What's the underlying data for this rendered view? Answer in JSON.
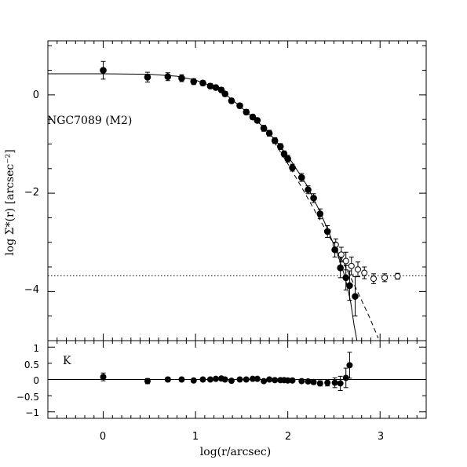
{
  "chart_data": {
    "type": "scatter",
    "annotation": "NGC7089 (M2)",
    "ylabel": "log Σ*(r) [arcsec⁻²]",
    "xlabel": "log(r/arcsec)",
    "residual_label": "K",
    "xlim": [
      -0.6,
      3.5
    ],
    "ylim": [
      -5.0,
      1.1
    ],
    "residual_ylim": [
      -1.2,
      1.2
    ],
    "background_level": -3.68,
    "x_ticks": [
      "0",
      "1",
      "2",
      "3"
    ],
    "y_ticks": [
      "0",
      "−2",
      "−4"
    ],
    "residual_ticks": [
      "1",
      "0.5",
      "0",
      "−0.5",
      "−1"
    ],
    "grid": false,
    "series": [
      {
        "marker": "filled-circle",
        "points": [
          {
            "x": 0.0,
            "y": 0.5,
            "e": 0.18
          },
          {
            "x": 0.48,
            "y": 0.36,
            "e": 0.1
          },
          {
            "x": 0.7,
            "y": 0.37,
            "e": 0.08
          },
          {
            "x": 0.85,
            "y": 0.34,
            "e": 0.07
          },
          {
            "x": 0.98,
            "y": 0.27,
            "e": 0.06
          },
          {
            "x": 1.08,
            "y": 0.24,
            "e": 0.05
          },
          {
            "x": 1.16,
            "y": 0.18,
            "e": 0.05
          },
          {
            "x": 1.22,
            "y": 0.15,
            "e": 0.05
          },
          {
            "x": 1.28,
            "y": 0.1,
            "e": 0.05
          },
          {
            "x": 1.32,
            "y": 0.02,
            "e": 0.05
          },
          {
            "x": 1.39,
            "y": -0.12,
            "e": 0.05
          },
          {
            "x": 1.48,
            "y": -0.22,
            "e": 0.05
          },
          {
            "x": 1.55,
            "y": -0.35,
            "e": 0.05
          },
          {
            "x": 1.62,
            "y": -0.45,
            "e": 0.05
          },
          {
            "x": 1.67,
            "y": -0.52,
            "e": 0.05
          },
          {
            "x": 1.74,
            "y": -0.68,
            "e": 0.06
          },
          {
            "x": 1.8,
            "y": -0.78,
            "e": 0.06
          },
          {
            "x": 1.86,
            "y": -0.93,
            "e": 0.06
          },
          {
            "x": 1.92,
            "y": -1.05,
            "e": 0.06
          },
          {
            "x": 1.96,
            "y": -1.2,
            "e": 0.06
          },
          {
            "x": 2.0,
            "y": -1.3,
            "e": 0.07
          },
          {
            "x": 2.05,
            "y": -1.48,
            "e": 0.07
          },
          {
            "x": 2.15,
            "y": -1.68,
            "e": 0.08
          },
          {
            "x": 2.22,
            "y": -1.93,
            "e": 0.08
          },
          {
            "x": 2.28,
            "y": -2.1,
            "e": 0.09
          },
          {
            "x": 2.35,
            "y": -2.42,
            "e": 0.1
          },
          {
            "x": 2.43,
            "y": -2.78,
            "e": 0.12
          },
          {
            "x": 2.51,
            "y": -3.15,
            "e": 0.15
          },
          {
            "x": 2.57,
            "y": -3.52,
            "e": 0.2
          },
          {
            "x": 2.63,
            "y": -3.72,
            "e": 0.25
          },
          {
            "x": 2.67,
            "y": -3.88,
            "e": 0.3
          },
          {
            "x": 2.73,
            "y": -4.1,
            "e": 0.4
          }
        ]
      },
      {
        "marker": "open-circle",
        "points": [
          {
            "x": 2.52,
            "y": -3.05,
            "e": 0.12
          },
          {
            "x": 2.58,
            "y": -3.25,
            "e": 0.15
          },
          {
            "x": 2.63,
            "y": -3.38,
            "e": 0.18
          },
          {
            "x": 2.69,
            "y": -3.48,
            "e": 0.18
          },
          {
            "x": 2.76,
            "y": -3.55,
            "e": 0.15
          },
          {
            "x": 2.83,
            "y": -3.62,
            "e": 0.12
          },
          {
            "x": 2.93,
            "y": -3.74,
            "e": 0.1
          },
          {
            "x": 3.05,
            "y": -3.72,
            "e": 0.08
          },
          {
            "x": 3.19,
            "y": -3.69,
            "e": 0.06
          }
        ]
      }
    ],
    "model_solid": [
      {
        "x": -0.6,
        "y": 0.43
      },
      {
        "x": 0.0,
        "y": 0.43
      },
      {
        "x": 0.5,
        "y": 0.42
      },
      {
        "x": 0.8,
        "y": 0.38
      },
      {
        "x": 1.0,
        "y": 0.3
      },
      {
        "x": 1.15,
        "y": 0.2
      },
      {
        "x": 1.3,
        "y": 0.05
      },
      {
        "x": 1.45,
        "y": -0.18
      },
      {
        "x": 1.6,
        "y": -0.42
      },
      {
        "x": 1.75,
        "y": -0.68
      },
      {
        "x": 1.9,
        "y": -1.0
      },
      {
        "x": 2.05,
        "y": -1.38
      },
      {
        "x": 2.2,
        "y": -1.82
      },
      {
        "x": 2.35,
        "y": -2.38
      },
      {
        "x": 2.45,
        "y": -2.82
      },
      {
        "x": 2.55,
        "y": -3.3
      },
      {
        "x": 2.62,
        "y": -3.7
      },
      {
        "x": 2.68,
        "y": -4.2
      },
      {
        "x": 2.72,
        "y": -4.7
      },
      {
        "x": 2.75,
        "y": -5.0
      }
    ],
    "model_dashed": [
      {
        "x": 1.85,
        "y": -0.95
      },
      {
        "x": 2.0,
        "y": -1.4
      },
      {
        "x": 2.15,
        "y": -1.88
      },
      {
        "x": 2.3,
        "y": -2.38
      },
      {
        "x": 2.45,
        "y": -2.88
      },
      {
        "x": 2.6,
        "y": -3.4
      },
      {
        "x": 2.75,
        "y": -3.98
      },
      {
        "x": 2.88,
        "y": -4.5
      },
      {
        "x": 2.98,
        "y": -4.95
      }
    ],
    "residuals": [
      {
        "x": 0.0,
        "y": 0.08,
        "e": 0.12
      },
      {
        "x": 0.48,
        "y": -0.05,
        "e": 0.08
      },
      {
        "x": 0.7,
        "y": 0.0,
        "e": 0.07
      },
      {
        "x": 0.85,
        "y": 0.0,
        "e": 0.06
      },
      {
        "x": 0.98,
        "y": -0.03,
        "e": 0.05
      },
      {
        "x": 1.08,
        "y": 0.0,
        "e": 0.04
      },
      {
        "x": 1.16,
        "y": 0.0,
        "e": 0.04
      },
      {
        "x": 1.22,
        "y": 0.02,
        "e": 0.04
      },
      {
        "x": 1.28,
        "y": 0.03,
        "e": 0.04
      },
      {
        "x": 1.32,
        "y": 0.0,
        "e": 0.04
      },
      {
        "x": 1.39,
        "y": -0.04,
        "e": 0.04
      },
      {
        "x": 1.48,
        "y": 0.0,
        "e": 0.04
      },
      {
        "x": 1.55,
        "y": 0.0,
        "e": 0.04
      },
      {
        "x": 1.62,
        "y": 0.02,
        "e": 0.04
      },
      {
        "x": 1.67,
        "y": 0.02,
        "e": 0.04
      },
      {
        "x": 1.74,
        "y": -0.05,
        "e": 0.05
      },
      {
        "x": 1.8,
        "y": 0.0,
        "e": 0.05
      },
      {
        "x": 1.86,
        "y": -0.02,
        "e": 0.05
      },
      {
        "x": 1.92,
        "y": -0.02,
        "e": 0.05
      },
      {
        "x": 1.96,
        "y": -0.02,
        "e": 0.05
      },
      {
        "x": 2.0,
        "y": -0.03,
        "e": 0.05
      },
      {
        "x": 2.05,
        "y": -0.03,
        "e": 0.05
      },
      {
        "x": 2.15,
        "y": -0.05,
        "e": 0.06
      },
      {
        "x": 2.22,
        "y": -0.06,
        "e": 0.06
      },
      {
        "x": 2.28,
        "y": -0.08,
        "e": 0.07
      },
      {
        "x": 2.35,
        "y": -0.12,
        "e": 0.08
      },
      {
        "x": 2.43,
        "y": -0.1,
        "e": 0.1
      },
      {
        "x": 2.51,
        "y": -0.1,
        "e": 0.15
      },
      {
        "x": 2.57,
        "y": -0.12,
        "e": 0.22
      },
      {
        "x": 2.63,
        "y": 0.05,
        "e": 0.3
      },
      {
        "x": 2.67,
        "y": 0.44,
        "e": 0.4
      }
    ]
  }
}
